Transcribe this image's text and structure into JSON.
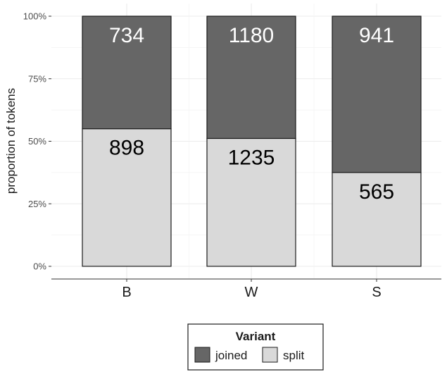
{
  "chart_data": {
    "type": "bar",
    "stacked": true,
    "normalized": true,
    "categories": [
      "B",
      "W",
      "S"
    ],
    "series": [
      {
        "name": "joined",
        "values": [
          734,
          1180,
          941
        ],
        "color": "#666666",
        "label_color": "#ffffff"
      },
      {
        "name": "split",
        "values": [
          898,
          1235,
          565
        ],
        "color": "#d9d9d9",
        "label_color": "#000000"
      }
    ],
    "ylabel": "proportion of tokens",
    "yticks": [
      "0%",
      "25%",
      "50%",
      "75%",
      "100%"
    ],
    "ylim": [
      0,
      1
    ],
    "grid": true,
    "legend": {
      "title": "Variant",
      "position": "bottom"
    }
  }
}
